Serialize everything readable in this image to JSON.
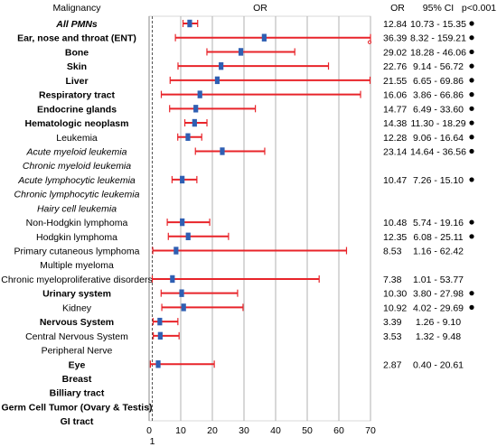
{
  "chart_data": {
    "type": "forest",
    "headers": {
      "label": "Malignancy",
      "plot": "OR",
      "or": "OR",
      "ci": "95% CI",
      "sig": "p<0.001"
    },
    "x_ticks": [
      0,
      10,
      20,
      30,
      40,
      50,
      60,
      70
    ],
    "x_reference": 1,
    "x_reference_label": "1",
    "xlim": [
      0,
      70
    ],
    "grid": true,
    "colors": {
      "ci_line": "#e8242a",
      "point": "#2f5fb3",
      "grid": "#b0b0b0",
      "reference": "#555555"
    },
    "rows": [
      {
        "label": "All PMNs",
        "style": "bi",
        "or": 12.84,
        "lo": 10.73,
        "hi": 15.35,
        "or_text": "12.84",
        "ci_text": "10.73 - 15.35",
        "sig": true
      },
      {
        "label": "Ear, nose and throat (ENT)",
        "style": "b",
        "or": 36.39,
        "lo": 8.32,
        "hi": 159.21,
        "or_text": "36.39",
        "ci_text": "8.32 - 159.21",
        "sig": true,
        "arrow": true
      },
      {
        "label": "Bone",
        "style": "b",
        "or": 29.02,
        "lo": 18.28,
        "hi": 46.06,
        "or_text": "29.02",
        "ci_text": "18.28 - 46.06",
        "sig": true
      },
      {
        "label": "Skin",
        "style": "b",
        "or": 22.76,
        "lo": 9.14,
        "hi": 56.72,
        "or_text": "22.76",
        "ci_text": "9.14 - 56.72",
        "sig": true
      },
      {
        "label": "Liver",
        "style": "b",
        "or": 21.55,
        "lo": 6.65,
        "hi": 69.86,
        "or_text": "21.55",
        "ci_text": "6.65 - 69.86",
        "sig": true
      },
      {
        "label": "Respiratory tract",
        "style": "b",
        "or": 16.06,
        "lo": 3.86,
        "hi": 66.86,
        "or_text": "16.06",
        "ci_text": "3.86 - 66.86",
        "sig": true
      },
      {
        "label": "Endocrine glands",
        "style": "b",
        "or": 14.77,
        "lo": 6.49,
        "hi": 33.6,
        "or_text": "14.77",
        "ci_text": "6.49 - 33.60",
        "sig": true
      },
      {
        "label": "Hematologic neoplasm",
        "style": "b",
        "or": 14.38,
        "lo": 11.3,
        "hi": 18.29,
        "or_text": "14.38",
        "ci_text": "11.30 - 18.29",
        "sig": true
      },
      {
        "label": "Leukemia",
        "style": "n",
        "or": 12.28,
        "lo": 9.06,
        "hi": 16.64,
        "or_text": "12.28",
        "ci_text": "9.06 - 16.64",
        "sig": true
      },
      {
        "label": "Acute myeloid leukemia",
        "style": "i",
        "or": 23.14,
        "lo": 14.64,
        "hi": 36.56,
        "or_text": "23.14",
        "ci_text": "14.64 - 36.56",
        "sig": true
      },
      {
        "label": "Chronic myeloid leukemia",
        "style": "i",
        "or": null
      },
      {
        "label": "Acute lymphocytic leukemia",
        "style": "i",
        "or": 10.47,
        "lo": 7.26,
        "hi": 15.1,
        "or_text": "10.47",
        "ci_text": "7.26 - 15.10",
        "sig": true
      },
      {
        "label": "Chronic lymphocytic leukemia",
        "style": "i",
        "or": null
      },
      {
        "label": "Hairy cell leukemia",
        "style": "i",
        "or": null
      },
      {
        "label": "Non-Hodgkin lymphoma",
        "style": "n",
        "or": 10.48,
        "lo": 5.74,
        "hi": 19.16,
        "or_text": "10.48",
        "ci_text": "5.74 - 19.16",
        "sig": true
      },
      {
        "label": "Hodgkin lymphoma",
        "style": "n",
        "or": 12.35,
        "lo": 6.08,
        "hi": 25.11,
        "or_text": "12.35",
        "ci_text": "6.08 - 25.11",
        "sig": true
      },
      {
        "label": "Primary cutaneous lymphoma",
        "style": "n",
        "or": 8.53,
        "lo": 1.16,
        "hi": 62.42,
        "or_text": "8.53",
        "ci_text": "1.16 - 62.42",
        "sig": false
      },
      {
        "label": "Multiple myeloma",
        "style": "n",
        "or": null
      },
      {
        "label": "Chronic myeloproliferative disorders",
        "style": "n",
        "or": 7.38,
        "lo": 1.01,
        "hi": 53.77,
        "or_text": "7.38",
        "ci_text": "1.01 - 53.77",
        "sig": false
      },
      {
        "label": "Urinary system",
        "style": "b",
        "or": 10.3,
        "lo": 3.8,
        "hi": 27.98,
        "or_text": "10.30",
        "ci_text": "3.80 - 27.98",
        "sig": true
      },
      {
        "label": "Kidney",
        "style": "n",
        "or": 10.92,
        "lo": 4.02,
        "hi": 29.69,
        "or_text": "10.92",
        "ci_text": "4.02 - 29.69",
        "sig": true
      },
      {
        "label": "Nervous System",
        "style": "b",
        "or": 3.39,
        "lo": 1.26,
        "hi": 9.1,
        "or_text": "3.39",
        "ci_text": "1.26 - 9.10",
        "sig": false
      },
      {
        "label": "Central Nervous System",
        "style": "n",
        "or": 3.53,
        "lo": 1.32,
        "hi": 9.48,
        "or_text": "3.53",
        "ci_text": "1.32 - 9.48",
        "sig": false
      },
      {
        "label": "Peripheral Nerve",
        "style": "n",
        "or": null
      },
      {
        "label": "Eye",
        "style": "b",
        "or": 2.87,
        "lo": 0.4,
        "hi": 20.61,
        "or_text": "2.87",
        "ci_text": "0.40 - 20.61",
        "sig": false
      },
      {
        "label": "Breast",
        "style": "b",
        "or": null
      },
      {
        "label": "Billiary tract",
        "style": "b",
        "or": null
      },
      {
        "label": "Germ Cell Tumor (Ovary & Testis)",
        "style": "b",
        "or": null
      },
      {
        "label": "GI tract",
        "style": "b",
        "or": null
      }
    ]
  }
}
